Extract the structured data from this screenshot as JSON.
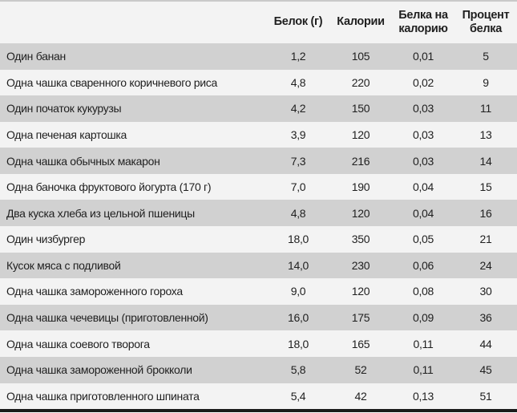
{
  "chart_data": {
    "type": "table",
    "columns": [
      "",
      "Белок (г)",
      "Калории",
      "Белка на калорию",
      "Процент белка"
    ],
    "rows": [
      [
        "Один банан",
        "1,2",
        "105",
        "0,01",
        "5"
      ],
      [
        "Одна чашка сваренного коричневого риса",
        "4,8",
        "220",
        "0,02",
        "9"
      ],
      [
        "Один початок кукурузы",
        "4,2",
        "150",
        "0,03",
        "11"
      ],
      [
        "Одна печеная картошка",
        "3,9",
        "120",
        "0,03",
        "13"
      ],
      [
        "Одна чашка обычных макарон",
        "7,3",
        "216",
        "0,03",
        "14"
      ],
      [
        "Одна баночка фруктового йогурта (170 г)",
        "7,0",
        "190",
        "0,04",
        "15"
      ],
      [
        "Два куска хлеба из цельной пшеницы",
        "4,8",
        "120",
        "0,04",
        "16"
      ],
      [
        "Один чизбургер",
        "18,0",
        "350",
        "0,05",
        "21"
      ],
      [
        "Кусок мяса с подливой",
        "14,0",
        "230",
        "0,06",
        "24"
      ],
      [
        "Одна чашка замороженного гороха",
        "9,0",
        "120",
        "0,08",
        "30"
      ],
      [
        "Одна чашка чечевицы (приготовленной)",
        "16,0",
        "175",
        "0,09",
        "36"
      ],
      [
        "Одна чашка соевого творога",
        "18,0",
        "165",
        "0,11",
        "44"
      ],
      [
        "Одна чашка замороженной брокколи",
        "5,8",
        "52",
        "0,11",
        "45"
      ],
      [
        "Одна чашка приготовленного шпината",
        "5,4",
        "42",
        "0,13",
        "51"
      ]
    ],
    "layout": {
      "grid": "off",
      "row_striping": "alternating",
      "first_data_row_shaded": true
    }
  },
  "colors": {
    "row_stripe": "#d1d1d1",
    "row_base": "#f3f3f3",
    "top_border": "#c9c9c9",
    "bottom_border": "#1b1b1b",
    "text": "#1f1f1f"
  }
}
